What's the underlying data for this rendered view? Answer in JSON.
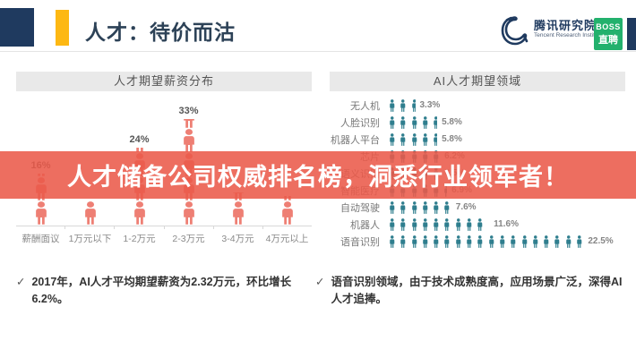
{
  "header": {
    "title": "人才：待价而沽",
    "tencent": {
      "name_cn": "腾讯研究院",
      "name_en": "Tencent Research Institute"
    },
    "boss": {
      "line1": "BOSS",
      "line2": "直聘"
    },
    "colors": {
      "navy": "#1f3a5f",
      "yellow": "#fdb813",
      "boss_green": "#23b16d"
    }
  },
  "banner": {
    "text": "人才储备公司权威排名榜，洞悉行业领军者！",
    "color": "rgba(234,90,74,0.88)"
  },
  "chart_data": [
    {
      "type": "bar",
      "title": "人才期望薪资分布",
      "categories": [
        "薪酬面议",
        "1万元以下",
        "1-2万元",
        "2-3万元",
        "3-4万元",
        "4万元以上"
      ],
      "values": [
        16,
        8,
        24,
        33,
        10,
        9
      ],
      "value_labels": [
        "16%",
        "",
        "24%",
        "33%",
        "",
        ""
      ],
      "unit": "%",
      "icon_color": "#ee7f74",
      "ylim": [
        0,
        35
      ],
      "legend": "none",
      "grid": false
    },
    {
      "type": "pictograph-bar",
      "title": "AI人才期望领域",
      "categories": [
        "无人机",
        "人脸识别",
        "机器人平台",
        "芯片",
        "语义识别",
        "智能医疗",
        "自动驾驶",
        "机器人",
        "语音识别"
      ],
      "values": [
        3.3,
        5.8,
        5.8,
        6.2,
        6.5,
        6.9,
        7.6,
        11.6,
        22.5
      ],
      "value_labels": [
        "3.3%",
        "5.8%",
        "5.8%",
        "6.2%",
        "6.5%",
        "6.9%",
        "7.6%",
        "11.6%",
        "22.5%"
      ],
      "unit": "%",
      "icon_color": "#2f7e8e",
      "icons_per_percent": 0.8,
      "legend": "none",
      "grid": false
    }
  ],
  "notes": [
    {
      "mark": "✓",
      "text": "2017年，AI人才平均期望薪资为2.32万元，环比增长6.2%。"
    },
    {
      "mark": "✓",
      "text": "语音识别领域，由于技术成熟度高，应用场景广泛，深得AI人才追捧。"
    }
  ]
}
